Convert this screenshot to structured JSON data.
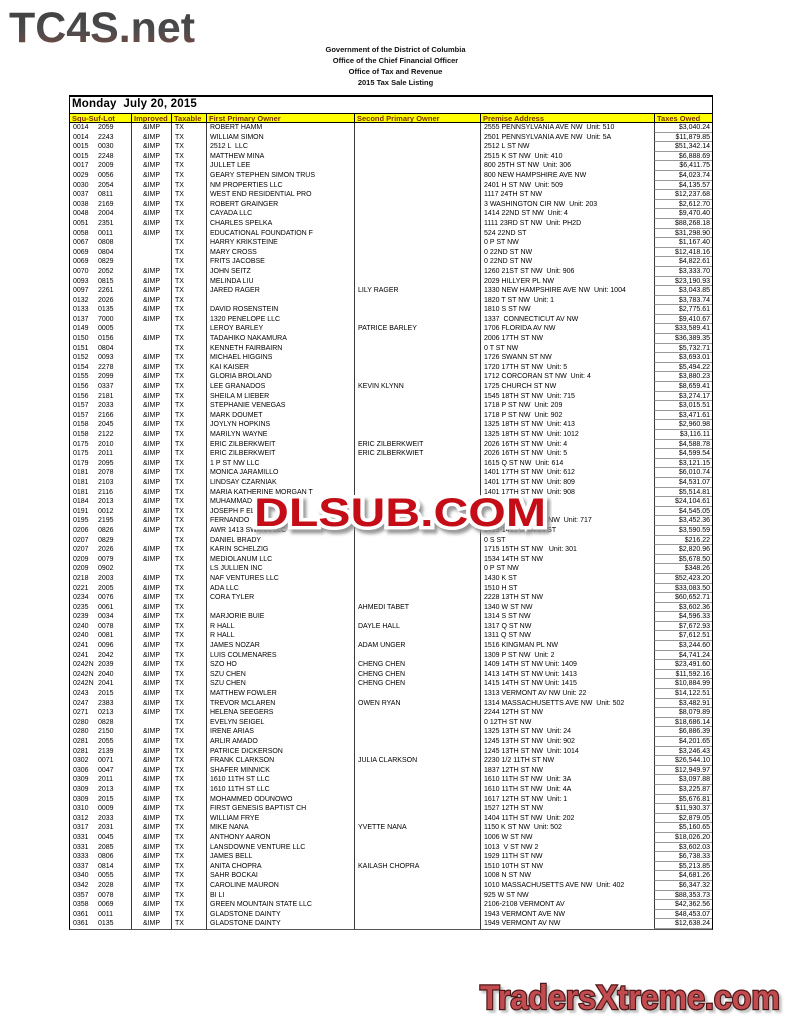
{
  "logo": "TC4S.net",
  "letterhead": [
    "Government of the District of Columbia",
    "Office of the Chief Financial Officer",
    "Office of Tax and Revenue",
    "2015 Tax Sale Listing"
  ],
  "date_heading": "Monday  July 20, 2015",
  "watermark_text": "DLSUB.COM",
  "footer_text": "TradersXtreme.com",
  "colors": {
    "header_bg": "#ffff00",
    "header_text": "#7b2e00",
    "watermark_red": "#c41117",
    "footer_red": "#c24b4f",
    "logo_gray_top": "#3e3e40",
    "logo_brown_bottom": "#7e4a40"
  },
  "table": {
    "columns": [
      "Squ-Suf-Lot",
      "Improved",
      "Taxable",
      "First Primary Owner",
      "Second Primary Owner",
      "Premise Address",
      "Taxes Owed"
    ],
    "rows": [
      [
        "0014",
        "2059",
        "&IMP",
        "TX",
        "ROBERT HAMM",
        "",
        "2555 PENNSYLVANIA AVE NW  Unit: 510",
        "$3,040.24"
      ],
      [
        "0014",
        "2243",
        "&IMP",
        "TX",
        "WILLIAM SIMON",
        "",
        "2501 PENNSYLVANIA AVE NW  Unit: 5A",
        "$11,879.85"
      ],
      [
        "0015",
        "0030",
        "&IMP",
        "TX",
        "2512 L  LLC",
        "",
        "2512 L ST NW",
        "$51,342.14"
      ],
      [
        "0015",
        "2248",
        "&IMP",
        "TX",
        "MATTHEW MINA",
        "",
        "2515 K ST NW  Unit: 410",
        "$6,888.69"
      ],
      [
        "0017",
        "2009",
        "&IMP",
        "TX",
        "JULLET LEE",
        "",
        "800 25TH ST NW  Unit: 306",
        "$6,411.75"
      ],
      [
        "0029",
        "0056",
        "&IMP",
        "TX",
        "GEARY STEPHEN SIMON TRUS",
        "",
        "800 NEW HAMPSHIRE AVE NW",
        "$4,023.74"
      ],
      [
        "0030",
        "2054",
        "&IMP",
        "TX",
        "NM PROPERTIES LLC",
        "",
        "2401 H ST NW  Unit: 509",
        "$4,135.57"
      ],
      [
        "0037",
        "0811",
        "&IMP",
        "TX",
        "WEST END RESIDENTIAL PRO",
        "",
        "1117 24TH ST NW",
        "$12,237.68"
      ],
      [
        "0038",
        "2169",
        "&IMP",
        "TX",
        "ROBERT GRAINGER",
        "",
        "3 WASHINGTON CIR NW  Unit: 203",
        "$2,612.70"
      ],
      [
        "0048",
        "2004",
        "&IMP",
        "TX",
        "CAYADA LLC",
        "",
        "1414 22ND ST NW  Unit: 4",
        "$9,470.40"
      ],
      [
        "0051",
        "2351",
        "&IMP",
        "TX",
        "CHARLES SPELKA",
        "",
        "1111 23RD ST NW  Unit: PH2D",
        "$88,268.18"
      ],
      [
        "0058",
        "0011",
        "&IMP",
        "TX",
        "EDUCATIONAL FOUNDATION F",
        "",
        "524 22ND ST",
        "$31,298.90"
      ],
      [
        "0067",
        "0808",
        "",
        "TX",
        "HARRY KRIKSTEINE",
        "",
        "0 P ST NW",
        "$1,167.40"
      ],
      [
        "0069",
        "0804",
        "",
        "TX",
        "MARY CROSS",
        "",
        "0 22ND ST NW",
        "$12,418.16"
      ],
      [
        "0069",
        "0829",
        "",
        "TX",
        "FRITS JACOBSE",
        "",
        "0 22ND ST NW",
        "$4,822.61"
      ],
      [
        "0070",
        "2052",
        "&IMP",
        "TX",
        "JOHN SEITZ",
        "",
        "1260 21ST ST NW  Unit: 906",
        "$3,333.70"
      ],
      [
        "0093",
        "0815",
        "&IMP",
        "TX",
        "MELINDA LIU",
        "",
        "2029 HILLYER PL NW",
        "$23,190.93"
      ],
      [
        "0097",
        "2261",
        "&IMP",
        "TX",
        "JARED RAGER",
        "LILY RAGER",
        "1330 NEW HAMPSHIRE AVE NW  Unit: 1004",
        "$3,043.85"
      ],
      [
        "0132",
        "2026",
        "&IMP",
        "TX",
        "",
        "",
        "1820 T ST NW  Unit: 1",
        "$3,783.74"
      ],
      [
        "0133",
        "0135",
        "&IMP",
        "TX",
        "DAVID ROSENSTEIN",
        "",
        "1810 S ST NW",
        "$2,775.61"
      ],
      [
        "0137",
        "7000",
        "&IMP",
        "TX",
        "1320 PENELOPE LLC",
        "",
        "1337  CONNECTICUT AV NW",
        "$9,410.67"
      ],
      [
        "0149",
        "0005",
        "",
        "TX",
        "LEROY BARLEY",
        "PATRICE BARLEY",
        "1706 FLORIDA AV NW",
        "$33,589.41"
      ],
      [
        "0150",
        "0156",
        "&IMP",
        "TX",
        "TADAHIKO NAKAMURA",
        "",
        "2006 17TH ST NW",
        "$36,389.35"
      ],
      [
        "0151",
        "0804",
        "",
        "TX",
        "KENNETH FAIRBAIRN",
        "",
        "0 T ST NW",
        "$5,732.71"
      ],
      [
        "0152",
        "0093",
        "&IMP",
        "TX",
        "MICHAEL HIGGINS",
        "",
        "1726 SWANN ST NW",
        "$3,693.01"
      ],
      [
        "0154",
        "2278",
        "&IMP",
        "TX",
        "KAI KAISER",
        "",
        "1720 17TH ST NW  Unit: 5",
        "$5,494.22"
      ],
      [
        "0155",
        "2099",
        "&IMP",
        "TX",
        "GLORIA BROLAND",
        "",
        "1712 CORCORAN ST NW  Unit: 4",
        "$3,880.23"
      ],
      [
        "0156",
        "0337",
        "&IMP",
        "TX",
        "LEE GRANADOS",
        "KEVIN KLYNN",
        "1725 CHURCH ST NW",
        "$8,659.41"
      ],
      [
        "0156",
        "2181",
        "&IMP",
        "TX",
        "SHEILA M LIEBER",
        "",
        "1545 18TH ST NW  Unit: 715",
        "$3,274.17"
      ],
      [
        "0157",
        "2033",
        "&IMP",
        "TX",
        "STEPHANIE VENEGAS",
        "",
        "1718 P ST NW  Unit: 209",
        "$3,015.51"
      ],
      [
        "0157",
        "2166",
        "&IMP",
        "TX",
        "MARK DOUMET",
        "",
        "1718 P ST NW  Unit: 902",
        "$3,471.61"
      ],
      [
        "0158",
        "2045",
        "&IMP",
        "TX",
        "JOYLYN HOPKINS",
        "",
        "1325 18TH ST NW  Unit: 413",
        "$2,960.98"
      ],
      [
        "0158",
        "2122",
        "&IMP",
        "TX",
        "MARILYN WAYNE",
        "",
        "1325 18TH ST NW  Unit: 1012",
        "$3,116.11"
      ],
      [
        "0175",
        "2010",
        "&IMP",
        "TX",
        "ERIC ZILBERKWEIT",
        "ERIC ZILBERKWEIT",
        "2026 16TH ST NW  Unit: 4",
        "$4,588.78"
      ],
      [
        "0175",
        "2011",
        "&IMP",
        "TX",
        "ERIC ZILBERKWEIT",
        "ERIC ZILBERKWIET",
        "2026 16TH ST NW  Unit: 5",
        "$4,599.54"
      ],
      [
        "0179",
        "2095",
        "&IMP",
        "TX",
        "1 P ST NW LLC",
        "",
        "1615 Q ST NW  Unit: 614",
        "$3,121.15"
      ],
      [
        "0181",
        "2078",
        "&IMP",
        "TX",
        "MONICA JARAMILLO",
        "",
        "1401 17TH ST NW  Unit: 612",
        "$6,010.74"
      ],
      [
        "0181",
        "2103",
        "&IMP",
        "TX",
        "LINDSAY CZARNIAK",
        "",
        "1401 17TH ST NW  Unit: 809",
        "$4,531.07"
      ],
      [
        "0181",
        "2116",
        "&IMP",
        "TX",
        "MARIA KATHERINE MORGAN T",
        "",
        "1401 17TH ST NW  Unit: 908",
        "$5,514.81"
      ],
      [
        "0184",
        "2013",
        "&IMP",
        "TX",
        "MUHAMMAD",
        "",
        "",
        "$24,104.61"
      ],
      [
        "0191",
        "0012",
        "&IMP",
        "TX",
        "JOSEPH F EL",
        "",
        "",
        "$4,545.05"
      ],
      [
        "0195",
        "2195",
        "&IMP",
        "TX",
        "FERNANDO",
        "",
        "                                 NW  Unit: 717",
        "$3,452.36"
      ],
      [
        "0206",
        "0826",
        "&IMP",
        "TX",
        "AWR 1413 SWANN LLC",
        "",
        "1413-1415 SWANN ST",
        "$3,590.59"
      ],
      [
        "0207",
        "0829",
        "",
        "TX",
        "DANIEL BRADY",
        "",
        "0 S ST",
        "$216.22"
      ],
      [
        "0207",
        "2026",
        "&IMP",
        "TX",
        "KARIN SCHELZIG",
        "",
        "1715 15TH ST NW   Unit: 301",
        "$2,820.96"
      ],
      [
        "0209",
        "0079",
        "&IMP",
        "TX",
        "MEDIOLANUM LLC",
        "",
        "1534 14TH ST NW",
        "$5,678.50"
      ],
      [
        "0209",
        "0902",
        "",
        "TX",
        "LS JULLIEN INC",
        "",
        "0 P ST NW",
        "$348.26"
      ],
      [
        "0218",
        "2003",
        "&IMP",
        "TX",
        "NAF VENTURES LLC",
        "",
        "1430 K ST",
        "$52,423.20"
      ],
      [
        "0221",
        "2005",
        "&IMP",
        "TX",
        "ADA LLC",
        "",
        "1510 H ST",
        "$33,083.50"
      ],
      [
        "0234",
        "0076",
        "&IMP",
        "TX",
        "CORA TYLER",
        "",
        "2228 13TH ST NW",
        "$60,652.71"
      ],
      [
        "0235",
        "0061",
        "&IMP",
        "TX",
        "",
        "AHMEDI TABET",
        "1340 W ST NW",
        "$3,602.36"
      ],
      [
        "0239",
        "0034",
        "&IMP",
        "TX",
        "MARJORIE BUIE",
        "",
        "1314 S ST NW",
        "$4,596.33"
      ],
      [
        "0240",
        "0078",
        "&IMP",
        "TX",
        "R HALL",
        "DAYLE HALL",
        "1317 Q ST NW",
        "$7,672.93"
      ],
      [
        "0240",
        "0081",
        "&IMP",
        "TX",
        "R HALL",
        "",
        "1311 Q ST NW",
        "$7,612.51"
      ],
      [
        "0241",
        "0096",
        "&IMP",
        "TX",
        "JAMES NOZAR",
        "ADAM UNGER",
        "1516 KINGMAN PL NW",
        "$3,244.60"
      ],
      [
        "0241",
        "2042",
        "&IMP",
        "TX",
        "LUIS COLMENARES",
        "",
        "1309 P ST NW  Unit: 2",
        "$4,741.24"
      ],
      [
        "0242N",
        "2039",
        "&IMP",
        "TX",
        "SZO HO",
        "CHENG CHEN",
        "1409 14TH ST NW Unit: 1409",
        "$23,491.60"
      ],
      [
        "0242N",
        "2040",
        "&IMP",
        "TX",
        "SZU CHEN",
        "CHENG CHEN",
        "1413 14TH ST NW Unit: 1413",
        "$11,592.16"
      ],
      [
        "0242N",
        "2041",
        "&IMP",
        "TX",
        "SZU CHEN",
        "CHENG CHEN",
        "1415 14TH ST NW Unit: 1415",
        "$10,884.99"
      ],
      [
        "0243",
        "2015",
        "&IMP",
        "TX",
        "MATTHEW FOWLER",
        "",
        "1313 VERMONT AV NW Unit: 22",
        "$14,122.51"
      ],
      [
        "0247",
        "2383",
        "&IMP",
        "TX",
        "TREVOR MCLAREN",
        "OWEN RYAN",
        "1314 MASSACHUSETTS AVE NW  Unit: 502",
        "$3,482.91"
      ],
      [
        "0271",
        "0213",
        "&IMP",
        "TX",
        "HELENA SEEGERS",
        "",
        "2244 12TH ST NW",
        "$8,079.89"
      ],
      [
        "0280",
        "0828",
        "",
        "TX",
        "EVELYN SEIGEL",
        "",
        "0 12TH ST NW",
        "$18,686.14"
      ],
      [
        "0280",
        "2150",
        "&IMP",
        "TX",
        "IRENE ARIAS",
        "",
        "1325 13TH ST NW  Unit: 24",
        "$6,886.39"
      ],
      [
        "0281",
        "2055",
        "&IMP",
        "TX",
        "ARLIR AMADO",
        "",
        "1245 13TH ST NW  Unit: 902",
        "$4,201.65"
      ],
      [
        "0281",
        "2139",
        "&IMP",
        "TX",
        "PATRICE DICKERSON",
        "",
        "1245 13TH ST NW  Unit: 1014",
        "$3,246.43"
      ],
      [
        "0302",
        "0071",
        "&IMP",
        "TX",
        "FRANK CLARKSON",
        "JULIA CLARKSON",
        "2230 1/2 11TH ST NW",
        "$26,544.10"
      ],
      [
        "0306",
        "0047",
        "&IMP",
        "TX",
        "SHAFER MINNICK",
        "",
        "1837 12TH ST NW",
        "$12,949.97"
      ],
      [
        "0309",
        "2011",
        "&IMP",
        "TX",
        "1610 11TH ST LLC",
        "",
        "1610 11TH ST NW  Unit: 3A",
        "$3,097.88"
      ],
      [
        "0309",
        "2013",
        "&IMP",
        "TX",
        "1610 11TH ST LLC",
        "",
        "1610 11TH ST NW  Unit: 4A",
        "$3,225.87"
      ],
      [
        "0309",
        "2015",
        "&IMP",
        "TX",
        "MOHAMMED ODUNOWO",
        "",
        "1617 12TH ST NW  Unit: 1",
        "$5,676.81"
      ],
      [
        "0310",
        "0009",
        "&IMP",
        "TX",
        "FIRST GENESIS BAPTIST CH",
        "",
        "1527 12TH ST NW",
        "$11,930.37"
      ],
      [
        "0312",
        "2033",
        "&IMP",
        "TX",
        "WILLIAM FRYE",
        "",
        "1404 11TH ST NW  Unit: 202",
        "$2,879.05"
      ],
      [
        "0317",
        "2031",
        "&IMP",
        "TX",
        "MIKE NANA",
        "YVETTE NANA",
        "1150 K ST NW  Unit: 502",
        "$5,160.65"
      ],
      [
        "0331",
        "0045",
        "&IMP",
        "TX",
        "ANTHONY AARON",
        "",
        "1006 W ST NW",
        "$18,026.20"
      ],
      [
        "0331",
        "2085",
        "&IMP",
        "TX",
        "LANSDOWNE VENTURE LLC",
        "",
        "1013  V ST NW 2",
        "$3,602.03"
      ],
      [
        "0333",
        "0806",
        "&IMP",
        "TX",
        "JAMES BELL",
        "",
        "1929 11TH ST NW",
        "$6,738.33"
      ],
      [
        "0337",
        "0814",
        "&IMP",
        "TX",
        "ANITA CHOPRA",
        "KAILASH CHOPRA",
        "1510 10TH ST NW",
        "$5,213.85"
      ],
      [
        "0340",
        "0055",
        "&IMP",
        "TX",
        "SAHR BOCKAI",
        "",
        "1008 N ST NW",
        "$4,681.26"
      ],
      [
        "0342",
        "2028",
        "&IMP",
        "TX",
        "CAROLINE MAURON",
        "",
        "1010 MASSACHUSETTS AVE NW  Unit: 402",
        "$6,347.32"
      ],
      [
        "0357",
        "0078",
        "&IMP",
        "TX",
        "BI LI",
        "",
        "925 W ST NW",
        "$88,353.73"
      ],
      [
        "0358",
        "0069",
        "&IMP",
        "TX",
        "GREEN MOUNTAIN STATE LLC",
        "",
        "2106-2108 VERMONT AV",
        "$42,362.56"
      ],
      [
        "0361",
        "0011",
        "&IMP",
        "TX",
        "GLADSTONE DAINTY",
        "",
        "1943 VERMONT AVE NW",
        "$48,453.07"
      ],
      [
        "0361",
        "0135",
        "&IMP",
        "TX",
        "GLADSTONE DAINTY",
        "",
        "1949 VERMONT AV NW",
        "$12,638.24"
      ]
    ]
  }
}
